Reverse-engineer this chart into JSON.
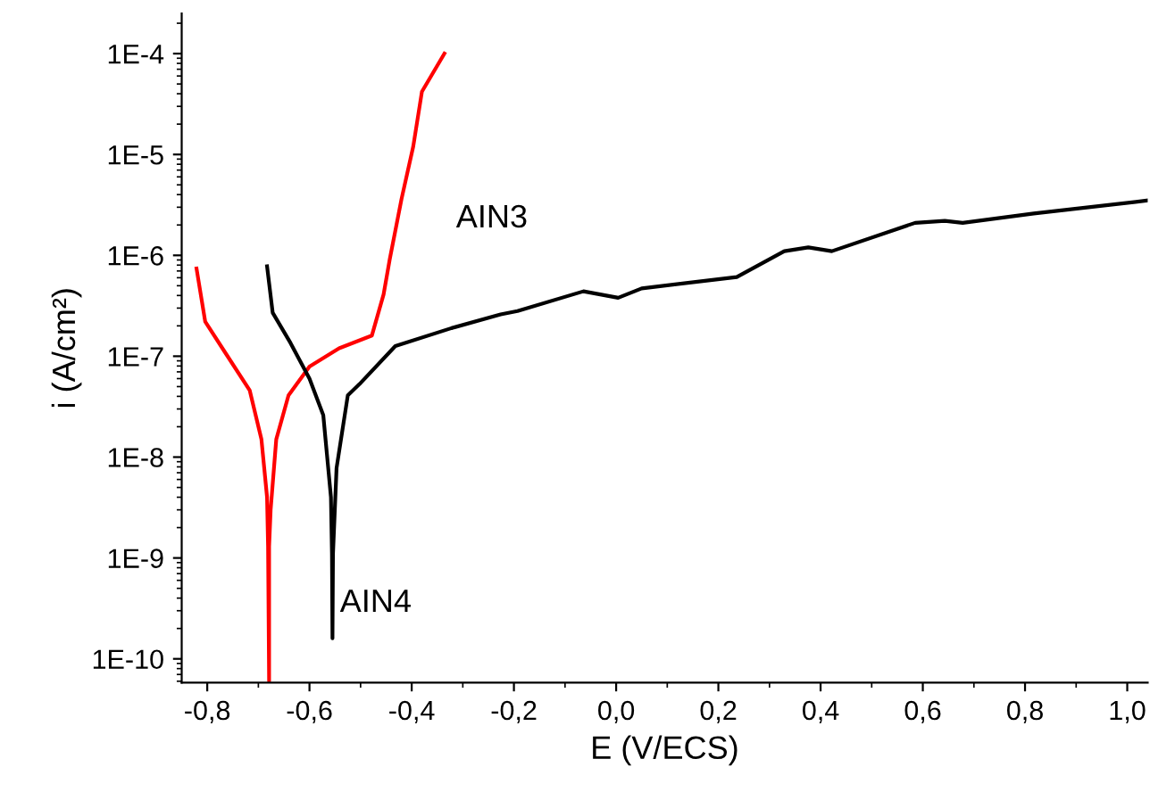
{
  "chart_data": {
    "type": "line",
    "xlabel": "E (V/ECS)",
    "ylabel": "i (A/cm²)",
    "log": "y",
    "xlim": [
      -0.85,
      1.04
    ],
    "ylim": [
      5.8e-11,
      0.00025
    ],
    "xticks": [
      {
        "value": -0.8,
        "label": "-0,8"
      },
      {
        "value": -0.6,
        "label": "-0,6"
      },
      {
        "value": -0.4,
        "label": "-0,4"
      },
      {
        "value": -0.2,
        "label": "-0,2"
      },
      {
        "value": 0.0,
        "label": "0,0"
      },
      {
        "value": 0.2,
        "label": "0,2"
      },
      {
        "value": 0.4,
        "label": "0,4"
      },
      {
        "value": 0.6,
        "label": "0,6"
      },
      {
        "value": 0.8,
        "label": "0,8"
      },
      {
        "value": 1.0,
        "label": "1,0"
      }
    ],
    "yticks": [
      {
        "value": 1e-10,
        "label": "1E-10"
      },
      {
        "value": 1e-09,
        "label": "1E-9"
      },
      {
        "value": 1e-08,
        "label": "1E-8"
      },
      {
        "value": 1e-07,
        "label": "1E-7"
      },
      {
        "value": 1e-06,
        "label": "1E-6"
      },
      {
        "value": 1e-05,
        "label": "1E-5"
      },
      {
        "value": 0.0001,
        "label": "1E-4"
      }
    ],
    "grid": false,
    "legend": false,
    "series": [
      {
        "name": "AIN3",
        "color": "#ff0000",
        "x": [
          -0.821,
          -0.804,
          -0.763,
          -0.717,
          -0.694,
          -0.683,
          -0.681,
          -0.679,
          -0.679,
          -0.676,
          -0.665,
          -0.641,
          -0.6,
          -0.542,
          -0.478,
          -0.455,
          -0.443,
          -0.42,
          -0.397,
          -0.38,
          -0.336
        ],
        "values": [
          7.4e-07,
          2.2e-07,
          1.05e-07,
          4.6e-08,
          1.5e-08,
          4e-09,
          1.3e-09,
          6e-11,
          1.3e-09,
          3e-09,
          1.5e-08,
          4.1e-08,
          7.9e-08,
          1.2e-07,
          1.6e-07,
          4.1e-07,
          9.1e-07,
          3.6e-06,
          1.2e-05,
          4.2e-05,
          0.0001
        ]
      },
      {
        "name": "AIN4",
        "color": "#000000",
        "x": [
          -0.683,
          -0.672,
          -0.637,
          -0.6,
          -0.573,
          -0.558,
          -0.556,
          -0.555,
          -0.554,
          -0.547,
          -0.525,
          -0.502,
          -0.432,
          -0.322,
          -0.226,
          -0.193,
          -0.064,
          0.004,
          0.05,
          0.236,
          0.329,
          0.376,
          0.422,
          0.585,
          0.643,
          0.678,
          0.817,
          1.04
        ],
        "values": [
          7.8e-07,
          2.7e-07,
          1.35e-07,
          6e-08,
          2.6e-08,
          4e-09,
          1.1e-09,
          1.6e-10,
          1.1e-09,
          7.8e-09,
          4.1e-08,
          5.3e-08,
          1.26e-07,
          1.9e-07,
          2.6e-07,
          2.8e-07,
          4.4e-07,
          3.8e-07,
          4.7e-07,
          6.1e-07,
          1.1e-06,
          1.2e-06,
          1.1e-06,
          2.1e-06,
          2.2e-06,
          2.1e-06,
          2.6e-06,
          3.5e-06
        ]
      }
    ]
  }
}
